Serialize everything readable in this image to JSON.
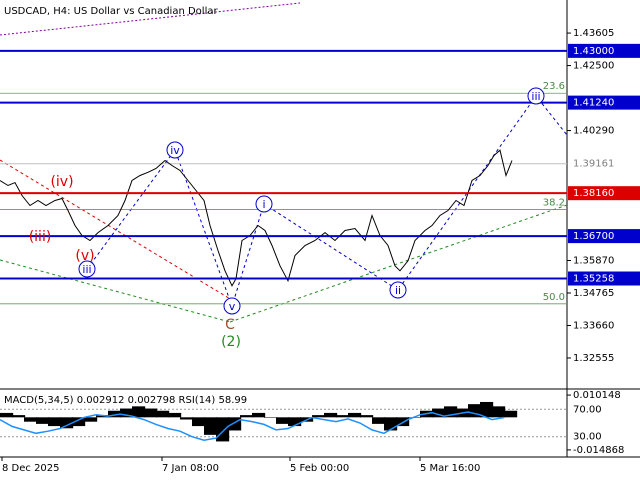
{
  "chart_data": [
    {
      "type": "line",
      "title": "USDCAD, H4:  US Dollar vs Canadian Dollar",
      "x": [
        0,
        8,
        15,
        22,
        30,
        38,
        46,
        55,
        62,
        68,
        75,
        82,
        90,
        98,
        108,
        118,
        125,
        132,
        140,
        148,
        156,
        165,
        172,
        180,
        188,
        196,
        204,
        210,
        218,
        225,
        232,
        236,
        242,
        250,
        258,
        265,
        272,
        280,
        288,
        295,
        305,
        315,
        325,
        335,
        345,
        355,
        365,
        372,
        380,
        388,
        395,
        400,
        408,
        415,
        425,
        432,
        440,
        448,
        456,
        464,
        472,
        480,
        488,
        494,
        500,
        506,
        512
      ],
      "series": [
        {
          "name": "USDCAD",
          "color": "#000000",
          "values": [
            1.3859,
            1.3842,
            1.3852,
            1.3808,
            1.3774,
            1.3791,
            1.3774,
            1.3791,
            1.3798,
            1.3757,
            1.3706,
            1.3672,
            1.3655,
            1.3682,
            1.3706,
            1.374,
            1.3791,
            1.3859,
            1.3876,
            1.3887,
            1.39,
            1.3927,
            1.391,
            1.3893,
            1.3859,
            1.3825,
            1.3791,
            1.3706,
            1.3621,
            1.3552,
            1.3501,
            1.3525,
            1.3655,
            1.3672,
            1.3706,
            1.3689,
            1.3638,
            1.3569,
            1.3518,
            1.3604,
            1.3638,
            1.3655,
            1.3682,
            1.3655,
            1.3689,
            1.3696,
            1.3655,
            1.374,
            1.3672,
            1.3638,
            1.3569,
            1.3552,
            1.3586,
            1.3655,
            1.3689,
            1.3706,
            1.374,
            1.3757,
            1.3791,
            1.3774,
            1.3859,
            1.3876,
            1.391,
            1.3944,
            1.3962,
            1.3876,
            1.3927
          ]
        }
      ],
      "xlim": [
        0,
        567
      ],
      "xticks": [
        {
          "value": 2,
          "label": "8 Dec 2025"
        },
        {
          "value": 162,
          "label": "7 Jan 08:00"
        },
        {
          "value": 290,
          "label": "5 Feb 00:00"
        },
        {
          "value": 420,
          "label": "5 Mar 16:00"
        }
      ],
      "ylim": [
        1.315,
        1.4473
      ],
      "yticks": [
        1.43605,
        {
          "value": 1.425,
          "label": "1.42500"
        },
        {
          "value": 1.4029,
          "label": "1.40290"
        },
        {
          "value": 1.3587,
          "label": "1.35870"
        },
        1.34765,
        {
          "value": 1.3366,
          "label": "1.33660"
        },
        1.32555
      ],
      "levels": [
        {
          "value": 1.43,
          "label": "1.43000",
          "color": "#0000cc"
        },
        {
          "value": 1.4124,
          "label": "1.41240",
          "color": "#0000cc"
        },
        {
          "value": 1.3816,
          "label": "1.38160",
          "color": "#dd0000"
        },
        {
          "value": 1.367,
          "label": "1.36700",
          "color": "#0000cc"
        },
        {
          "value": 1.35258,
          "label": "1.35258",
          "color": "#0000cc"
        }
      ],
      "current_price": 1.39161,
      "fib_levels": [
        {
          "value": 1.41559,
          "label": "23.6"
        },
        {
          "value": 1.37603,
          "label": "38.2"
        },
        {
          "value": 1.34398,
          "label": "50.0"
        }
      ],
      "annotations": [
        {
          "text": "(iv)",
          "color": "#dd0000",
          "style": "plain"
        },
        {
          "text": "(iii)",
          "color": "#dd0000",
          "style": "plain"
        },
        {
          "text": "(v)",
          "color": "#dd0000",
          "style": "plain"
        },
        {
          "text": "iii",
          "color": "#0000cc",
          "style": "circle"
        },
        {
          "text": "iv",
          "color": "#0000cc",
          "style": "circle"
        },
        {
          "text": "v",
          "color": "#0000cc",
          "style": "circle"
        },
        {
          "text": "C",
          "color": "#a0522d",
          "style": "plain"
        },
        {
          "text": "(2)",
          "color": "#228b22",
          "style": "plain"
        },
        {
          "text": "i",
          "color": "#0000cc",
          "style": "circle"
        },
        {
          "text": "ii",
          "color": "#0000cc",
          "style": "circle"
        },
        {
          "text": "iii",
          "color": "#0000cc",
          "style": "circle"
        }
      ]
    },
    {
      "type": "bar",
      "title": "MACD(5,34,5) 0.002912 0.002798 RSI(14) 58.99",
      "x": [
        0,
        12,
        24,
        36,
        48,
        60,
        72,
        84,
        96,
        108,
        120,
        132,
        144,
        156,
        168,
        180,
        192,
        204,
        216,
        228,
        240,
        252,
        264,
        276,
        288,
        300,
        312,
        324,
        336,
        348,
        360,
        372,
        384,
        396,
        408,
        420,
        432,
        444,
        456,
        468,
        480,
        492,
        504
      ],
      "series": [
        {
          "name": "MACD",
          "color": "#000000",
          "values": [
            0.002,
            0.001,
            -0.002,
            -0.003,
            -0.004,
            -0.005,
            -0.004,
            -0.002,
            0.001,
            0.003,
            0.004,
            0.005,
            0.004,
            0.003,
            0.002,
            -0.001,
            -0.004,
            -0.008,
            -0.011,
            -0.006,
            0.001,
            0.002,
            0.0,
            -0.003,
            -0.004,
            -0.002,
            0.001,
            0.002,
            0.001,
            0.002,
            0.001,
            -0.003,
            -0.006,
            -0.004,
            0.0,
            0.003,
            0.004,
            0.005,
            0.004,
            0.006,
            0.007,
            0.005,
            0.003
          ]
        },
        {
          "name": "RSI",
          "color": "#1e90ff",
          "axis": "y2",
          "values": [
            55,
            45,
            40,
            35,
            38,
            42,
            50,
            58,
            62,
            60,
            63,
            60,
            55,
            48,
            42,
            38,
            30,
            25,
            28,
            45,
            55,
            52,
            48,
            40,
            42,
            50,
            58,
            55,
            52,
            56,
            50,
            40,
            35,
            45,
            55,
            62,
            65,
            60,
            63,
            66,
            62,
            55,
            58
          ]
        }
      ],
      "xlim": [
        0,
        567
      ],
      "ylim": [
        -0.01765,
        0.01246
      ],
      "yticks": [
        0.010148,
        -0.014868
      ],
      "y2lim": [
        1.9,
        98.1
      ],
      "y2ticks": [
        {
          "value": 70,
          "label": "70.00"
        },
        {
          "value": 30,
          "label": "30.00"
        }
      ]
    }
  ]
}
